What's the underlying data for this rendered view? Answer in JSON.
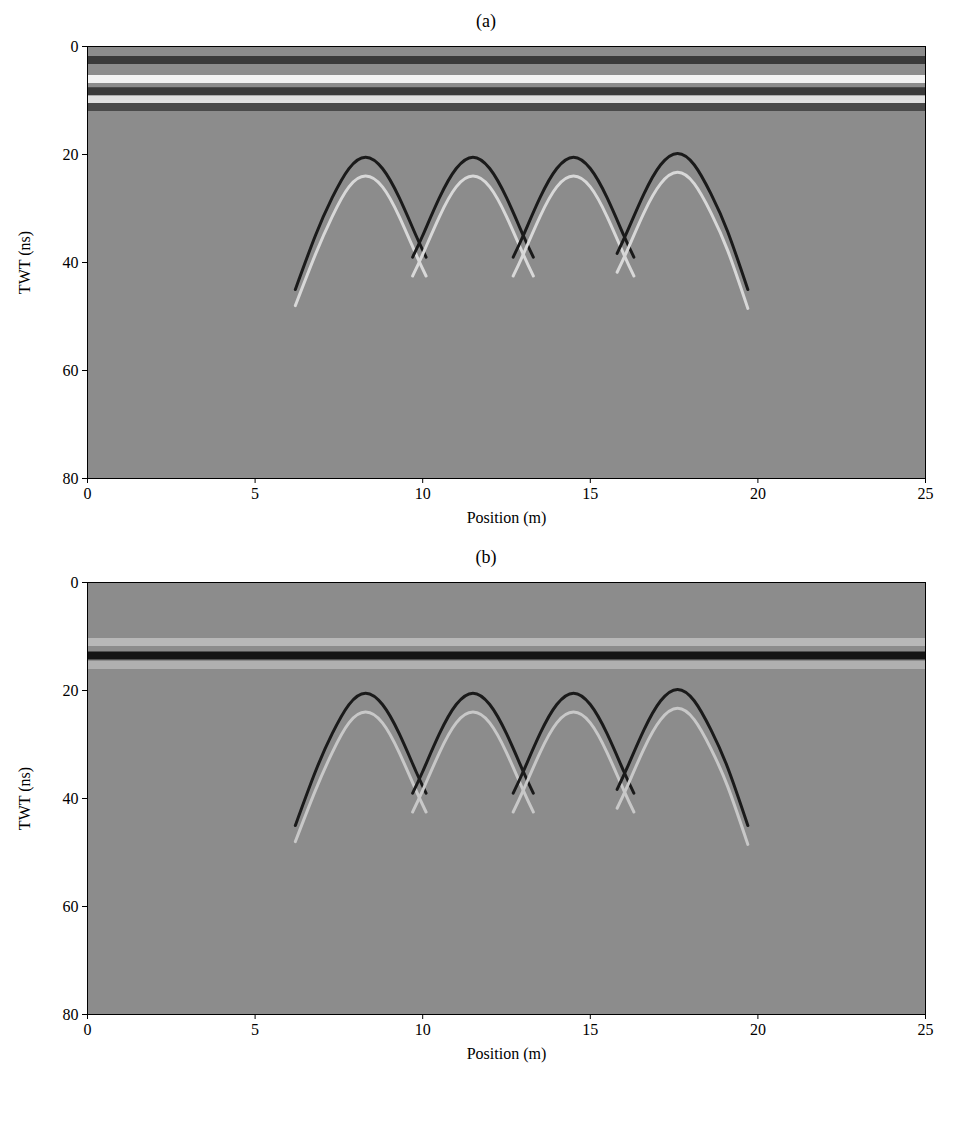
{
  "chart_data": [
    {
      "type": "line",
      "title": "(a)",
      "x_label": "Position (m)",
      "y_label": "TWT (ns)",
      "xlim": [
        0,
        25
      ],
      "ylim": [
        0,
        80
      ],
      "xticks": [
        0,
        5,
        10,
        15,
        20,
        25
      ],
      "yticks": [
        0,
        20,
        40,
        60,
        80
      ],
      "series": [
        {
          "type": "band",
          "color": "#3a3a3a",
          "x": [
            0,
            25
          ],
          "values": [
            2.5,
            2.5
          ]
        },
        {
          "type": "band",
          "color": "#f2f2f2",
          "x": [
            0,
            25
          ],
          "values": [
            6,
            6
          ]
        },
        {
          "type": "band",
          "color": "#3a3a3a",
          "x": [
            0,
            25
          ],
          "values": [
            8.3,
            8.3
          ]
        },
        {
          "type": "band",
          "color": "#e0e0e0",
          "x": [
            0,
            25
          ],
          "values": [
            9.8,
            9.8
          ]
        },
        {
          "type": "band",
          "color": "#4a4a4a",
          "x": [
            0,
            25
          ],
          "values": [
            11.2,
            11.2
          ]
        },
        {
          "type": "line",
          "color": "#1a1a1a",
          "x": [
            6.2,
            6.8,
            7.3,
            7.8,
            8.3,
            8.8,
            9.3,
            9.8,
            10.1
          ],
          "values": [
            45,
            35,
            28,
            22.6,
            20.5,
            22.6,
            28,
            35,
            39
          ]
        },
        {
          "type": "line",
          "color": "#d8d8d8",
          "x": [
            6.2,
            6.8,
            7.3,
            7.8,
            8.3,
            8.8,
            9.3,
            9.8,
            10.1
          ],
          "values": [
            48,
            38.5,
            31.5,
            26,
            24,
            26,
            31.5,
            38.5,
            42.5
          ]
        },
        {
          "type": "line",
          "color": "#1a1a1a",
          "x": [
            9.7,
            10,
            10.5,
            11,
            11.5,
            12,
            12.5,
            13,
            13.3
          ],
          "values": [
            39,
            35,
            28,
            22.6,
            20.5,
            22.6,
            28,
            35,
            39
          ]
        },
        {
          "type": "line",
          "color": "#d8d8d8",
          "x": [
            9.7,
            10,
            10.5,
            11,
            11.5,
            12,
            12.5,
            13,
            13.3
          ],
          "values": [
            42.5,
            38.5,
            31.5,
            26,
            24,
            26,
            31.5,
            38.5,
            42.5
          ]
        },
        {
          "type": "line",
          "color": "#1a1a1a",
          "x": [
            12.7,
            13,
            13.5,
            14,
            14.5,
            15,
            15.5,
            16,
            16.3
          ],
          "values": [
            39,
            35,
            28,
            22.6,
            20.5,
            22.6,
            28,
            35,
            39
          ]
        },
        {
          "type": "line",
          "color": "#d8d8d8",
          "x": [
            12.7,
            13,
            13.5,
            14,
            14.5,
            15,
            15.5,
            16,
            16.3
          ],
          "values": [
            42.5,
            38.5,
            31.5,
            26,
            24,
            26,
            31.5,
            38.5,
            42.5
          ]
        },
        {
          "type": "line",
          "color": "#1a1a1a",
          "x": [
            15.8,
            16.1,
            16.6,
            17.1,
            17.6,
            18.1,
            18.6,
            19.1,
            19.7
          ],
          "values": [
            38.3,
            34.3,
            27.3,
            21.9,
            19.8,
            21.9,
            27.3,
            34.3,
            45
          ]
        },
        {
          "type": "line",
          "color": "#d8d8d8",
          "x": [
            15.8,
            16.1,
            16.6,
            17.1,
            17.6,
            18.1,
            18.6,
            19.1,
            19.7
          ],
          "values": [
            41.8,
            37.8,
            30.8,
            25.4,
            23.3,
            25.4,
            30.8,
            37.8,
            48.5
          ]
        }
      ]
    },
    {
      "type": "line",
      "title": "(b)",
      "x_label": "Position (m)",
      "y_label": "TWT (ns)",
      "xlim": [
        0,
        25
      ],
      "ylim": [
        0,
        80
      ],
      "xticks": [
        0,
        5,
        10,
        15,
        20,
        25
      ],
      "yticks": [
        0,
        20,
        40,
        60,
        80
      ],
      "series": [
        {
          "type": "band",
          "color": "#b8b8b8",
          "x": [
            0,
            25
          ],
          "values": [
            11,
            11
          ]
        },
        {
          "type": "band",
          "color": "#151515",
          "x": [
            0,
            25
          ],
          "values": [
            13.5,
            13.5
          ]
        },
        {
          "type": "band",
          "color": "#b0b0b0",
          "x": [
            0,
            25
          ],
          "values": [
            15.3,
            15.3
          ]
        },
        {
          "type": "line",
          "color": "#1a1a1a",
          "x": [
            6.2,
            6.8,
            7.3,
            7.8,
            8.3,
            8.8,
            9.3,
            9.8,
            10.1
          ],
          "values": [
            45,
            35,
            28,
            22.6,
            20.5,
            22.6,
            28,
            35,
            39
          ]
        },
        {
          "type": "line",
          "color": "#c8c8c8",
          "x": [
            6.2,
            6.8,
            7.3,
            7.8,
            8.3,
            8.8,
            9.3,
            9.8,
            10.1
          ],
          "values": [
            48,
            38.5,
            31.5,
            26,
            24,
            26,
            31.5,
            38.5,
            42.5
          ]
        },
        {
          "type": "line",
          "color": "#1a1a1a",
          "x": [
            9.7,
            10,
            10.5,
            11,
            11.5,
            12,
            12.5,
            13,
            13.3
          ],
          "values": [
            39,
            35,
            28,
            22.6,
            20.5,
            22.6,
            28,
            35,
            39
          ]
        },
        {
          "type": "line",
          "color": "#c8c8c8",
          "x": [
            9.7,
            10,
            10.5,
            11,
            11.5,
            12,
            12.5,
            13,
            13.3
          ],
          "values": [
            42.5,
            38.5,
            31.5,
            26,
            24,
            26,
            31.5,
            38.5,
            42.5
          ]
        },
        {
          "type": "line",
          "color": "#1a1a1a",
          "x": [
            12.7,
            13,
            13.5,
            14,
            14.5,
            15,
            15.5,
            16,
            16.3
          ],
          "values": [
            39,
            35,
            28,
            22.6,
            20.5,
            22.6,
            28,
            35,
            39
          ]
        },
        {
          "type": "line",
          "color": "#c8c8c8",
          "x": [
            12.7,
            13,
            13.5,
            14,
            14.5,
            15,
            15.5,
            16,
            16.3
          ],
          "values": [
            42.5,
            38.5,
            31.5,
            26,
            24,
            26,
            31.5,
            38.5,
            42.5
          ]
        },
        {
          "type": "line",
          "color": "#1a1a1a",
          "x": [
            15.8,
            16.1,
            16.6,
            17.1,
            17.6,
            18.1,
            18.6,
            19.1,
            19.7
          ],
          "values": [
            38.3,
            34.3,
            27.3,
            21.9,
            19.8,
            21.9,
            27.3,
            34.3,
            45
          ]
        },
        {
          "type": "line",
          "color": "#c8c8c8",
          "x": [
            15.8,
            16.1,
            16.6,
            17.1,
            17.6,
            18.1,
            18.6,
            19.1,
            19.7
          ],
          "values": [
            41.8,
            37.8,
            30.8,
            25.4,
            23.3,
            25.4,
            30.8,
            37.8,
            48.5
          ]
        }
      ]
    }
  ]
}
